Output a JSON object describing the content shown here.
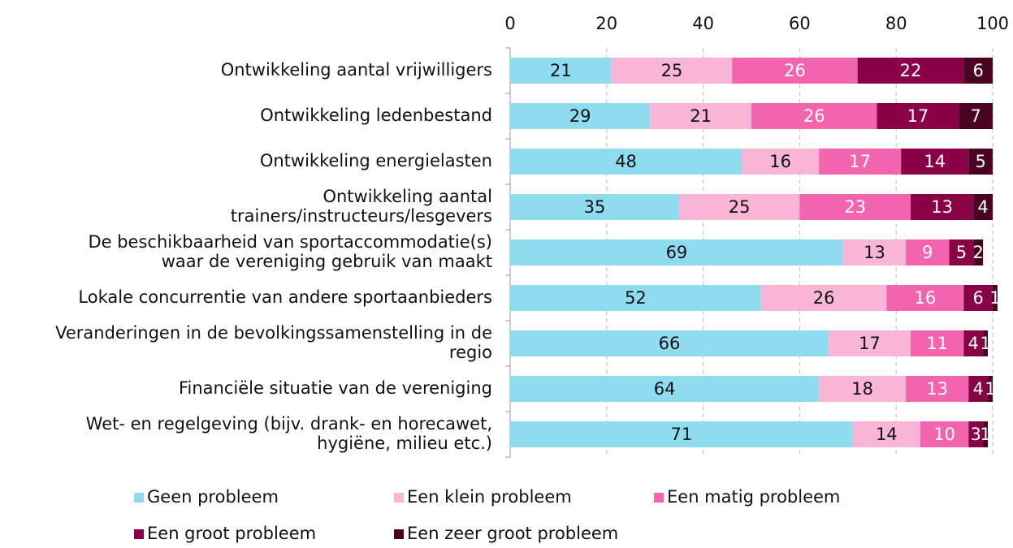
{
  "chart_data": {
    "type": "stacked_barh",
    "categories": [
      [
        "Ontwikkeling aantal vrijwilligers"
      ],
      [
        "Ontwikkeling ledenbestand"
      ],
      [
        "Ontwikkeling energielasten"
      ],
      [
        "Ontwikkeling aantal",
        "trainers/instructeurs/lesgevers"
      ],
      [
        "De beschikbaarheid van sportaccommodatie(s)",
        "waar de vereniging gebruik van maakt"
      ],
      [
        "Lokale concurrentie van andere sportaanbieders"
      ],
      [
        "Veranderingen in de bevolkingssamenstelling in de",
        "regio"
      ],
      [
        "Financiële situatie van de vereniging"
      ],
      [
        "Wet- en regelgeving (bijv. drank- en horecawet,",
        "hygiëne, milieu etc.)"
      ]
    ],
    "series": [
      {
        "name": "Geen probleem",
        "color": "#8fdcf0",
        "label_color": "#111111",
        "values": [
          21,
          29,
          48,
          35,
          69,
          52,
          66,
          64,
          71
        ]
      },
      {
        "name": "Een klein probleem",
        "color": "#f9b5d6",
        "label_color": "#111111",
        "values": [
          25,
          21,
          16,
          25,
          13,
          26,
          17,
          18,
          14
        ]
      },
      {
        "name": "Een matig probleem",
        "color": "#f264ae",
        "label_color": "#ffffff",
        "values": [
          26,
          26,
          17,
          23,
          9,
          16,
          11,
          13,
          10
        ]
      },
      {
        "name": "Een groot probleem",
        "color": "#8a0046",
        "label_color": "#ffffff",
        "values": [
          22,
          17,
          14,
          13,
          5,
          6,
          4,
          4,
          3
        ]
      },
      {
        "name": "Een zeer groot probleem",
        "color": "#4a0320",
        "label_color": "#ffffff",
        "values": [
          6,
          7,
          5,
          4,
          2,
          1,
          1,
          1,
          1
        ]
      }
    ],
    "xlim": [
      0,
      100
    ],
    "xticks": [
      0,
      20,
      40,
      60,
      80,
      100
    ],
    "grid": true,
    "legend": "bottom"
  }
}
